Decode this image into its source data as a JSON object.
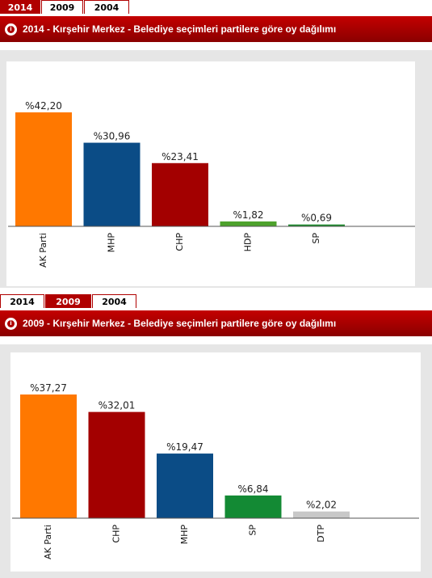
{
  "panels": [
    {
      "tabs": [
        {
          "label": "2014",
          "active": true
        },
        {
          "label": "2009",
          "active": false
        },
        {
          "label": "2004",
          "active": false
        }
      ],
      "title": "2014 - Kırşehir Merkez - Belediye seçimleri partilere göre oy dağılımı"
    },
    {
      "tabs": [
        {
          "label": "2014",
          "active": false
        },
        {
          "label": "2009",
          "active": true
        },
        {
          "label": "2004",
          "active": false
        }
      ],
      "title": "2009 - Kırşehir Merkez - Belediye seçimleri partilere göre oy dağılımı"
    }
  ],
  "chart_data": [
    {
      "type": "bar",
      "title": "2014 - Kırşehir Merkez - Belediye seçimleri partilere göre oy dağılımı",
      "categories": [
        "AK Parti",
        "MHP",
        "CHP",
        "HDP",
        "SP"
      ],
      "values": [
        42.2,
        30.96,
        23.41,
        1.82,
        0.69
      ],
      "data_labels": [
        "%42,20",
        "%30,96",
        "%23,41",
        "%1,82",
        "%0,69"
      ],
      "colors": [
        "#ff7800",
        "#0b4c86",
        "#a30000",
        "#4da22c",
        "#1f8c2f"
      ],
      "ylim": [
        0,
        42.2
      ],
      "grid": false,
      "legend": "none"
    },
    {
      "type": "bar",
      "title": "2009 - Kırşehir Merkez - Belediye seçimleri partilere göre oy dağılımı",
      "categories": [
        "AK Parti",
        "CHP",
        "MHP",
        "SP",
        "DTP"
      ],
      "values": [
        37.27,
        32.01,
        19.47,
        6.84,
        2.02
      ],
      "data_labels": [
        "%37,27",
        "%32,01",
        "%19,47",
        "%6,84",
        "%2,02"
      ],
      "colors": [
        "#ff7800",
        "#a30000",
        "#0b4c86",
        "#138a34",
        "#c8c8c8"
      ],
      "ylim": [
        0,
        37.27
      ],
      "grid": false,
      "legend": "none"
    }
  ]
}
